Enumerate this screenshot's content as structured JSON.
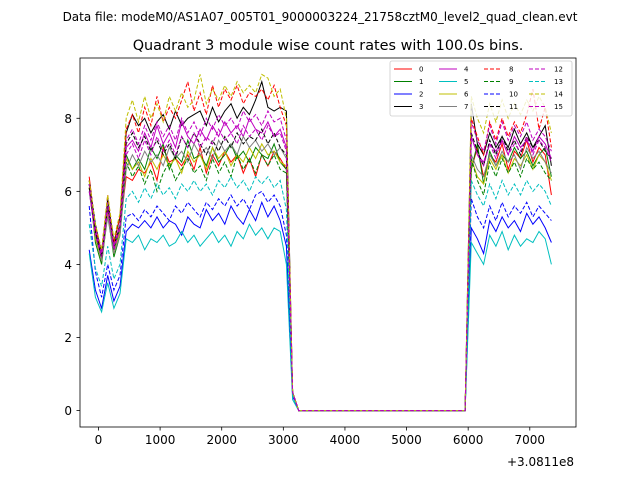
{
  "figure": {
    "suptitle": "Data file: modeM0/AS1A07_005T01_9000003224_21758cztM0_level2_quad_clean.evt"
  },
  "chart_data": {
    "type": "line",
    "title": "Quadrant 3 module wise count rates with 100.0s bins.",
    "xlabel": "",
    "ylabel": "",
    "x_offset_label": "+3.0811e8",
    "xlim": [
      -300,
      7750
    ],
    "ylim": [
      -0.45,
      9.65
    ],
    "xticks": [
      0,
      1000,
      2000,
      3000,
      4000,
      5000,
      6000,
      7000
    ],
    "yticks": [
      0,
      2,
      4,
      6,
      8
    ],
    "grid": false,
    "legend_position": "top-right",
    "x": [
      -150,
      -50,
      50,
      150,
      250,
      350,
      450,
      550,
      650,
      750,
      850,
      950,
      1050,
      1150,
      1250,
      1350,
      1450,
      1550,
      1650,
      1750,
      1850,
      1950,
      2050,
      2150,
      2250,
      2350,
      2450,
      2550,
      2650,
      2750,
      2850,
      2950,
      3050,
      3150,
      3250,
      3350,
      5950,
      6050,
      6150,
      6250,
      6350,
      6450,
      6550,
      6650,
      6750,
      6850,
      6950,
      7050,
      7150,
      7250,
      7350
    ],
    "series": [
      {
        "name": "0",
        "color": "#ff0000",
        "dash": false,
        "values": [
          6.4,
          5.0,
          4.3,
          5.6,
          4.4,
          5.0,
          6.4,
          6.3,
          6.6,
          6.5,
          6.8,
          6.3,
          7.2,
          6.8,
          6.9,
          6.7,
          7.0,
          6.6,
          7.2,
          6.5,
          7.0,
          6.7,
          7.1,
          6.8,
          7.0,
          6.5,
          6.9,
          6.4,
          7.0,
          6.7,
          7.1,
          6.9,
          6.6,
          0.5,
          0.0,
          0.0,
          0.0,
          6.6,
          7.2,
          6.4,
          7.0,
          6.8,
          7.3,
          6.6,
          7.1,
          6.9,
          7.4,
          6.8,
          7.2,
          7.0,
          5.9
        ]
      },
      {
        "name": "1",
        "color": "#008000",
        "dash": false,
        "values": [
          6.2,
          4.6,
          4.0,
          5.4,
          4.2,
          4.8,
          7.0,
          6.6,
          6.9,
          6.6,
          7.2,
          6.9,
          7.3,
          6.6,
          7.0,
          6.8,
          7.4,
          6.9,
          7.0,
          6.7,
          7.2,
          6.8,
          7.0,
          7.3,
          6.9,
          7.1,
          6.8,
          7.2,
          7.0,
          6.9,
          7.3,
          6.8,
          6.6,
          0.5,
          0.0,
          0.0,
          0.0,
          6.6,
          7.3,
          6.2,
          7.1,
          6.7,
          7.0,
          6.8,
          7.2,
          6.9,
          7.1,
          6.7,
          7.0,
          7.2,
          6.4
        ]
      },
      {
        "name": "2",
        "color": "#0000ff",
        "dash": false,
        "values": [
          4.4,
          3.3,
          2.8,
          3.7,
          3.0,
          3.4,
          4.9,
          5.1,
          5.0,
          5.2,
          5.0,
          5.3,
          5.0,
          5.2,
          5.1,
          4.8,
          5.3,
          5.1,
          5.0,
          5.5,
          5.2,
          5.4,
          5.1,
          5.6,
          5.3,
          5.1,
          5.5,
          5.2,
          5.7,
          5.3,
          5.6,
          5.2,
          4.5,
          0.4,
          0.0,
          0.0,
          0.0,
          5.0,
          4.7,
          4.3,
          5.2,
          4.9,
          5.3,
          5.0,
          5.2,
          4.9,
          5.4,
          5.1,
          5.3,
          5.0,
          4.6
        ]
      },
      {
        "name": "3",
        "color": "#000000",
        "dash": false,
        "values": [
          6.3,
          5.1,
          4.3,
          5.8,
          4.6,
          5.3,
          7.6,
          8.1,
          7.8,
          8.0,
          7.6,
          7.9,
          8.1,
          7.7,
          8.2,
          7.8,
          8.0,
          8.1,
          8.2,
          7.8,
          8.3,
          7.9,
          8.2,
          8.4,
          8.0,
          8.3,
          8.1,
          8.5,
          9.0,
          8.3,
          8.2,
          8.3,
          8.2,
          0.5,
          0.0,
          0.0,
          0.0,
          8.4,
          7.3,
          7.0,
          7.6,
          7.2,
          7.5,
          7.2,
          7.7,
          7.3,
          7.6,
          7.2,
          7.5,
          7.8,
          6.7
        ]
      },
      {
        "name": "4",
        "color": "#bf00bf",
        "dash": false,
        "values": [
          6.2,
          4.9,
          4.2,
          5.5,
          4.4,
          5.0,
          7.2,
          7.4,
          7.1,
          7.6,
          7.2,
          7.8,
          7.3,
          7.6,
          7.2,
          7.9,
          7.5,
          7.3,
          7.7,
          7.4,
          7.8,
          7.5,
          7.9,
          7.6,
          7.8,
          7.5,
          8.0,
          7.7,
          7.6,
          7.9,
          7.5,
          7.7,
          7.2,
          0.5,
          0.0,
          0.0,
          0.0,
          7.5,
          7.0,
          6.8,
          7.3,
          7.1,
          7.4,
          7.0,
          7.5,
          7.2,
          7.4,
          7.1,
          7.5,
          7.3,
          6.9
        ]
      },
      {
        "name": "5",
        "color": "#00bfbf",
        "dash": false,
        "values": [
          4.3,
          3.1,
          2.7,
          3.5,
          2.8,
          3.2,
          4.7,
          4.6,
          4.8,
          4.4,
          4.7,
          4.6,
          4.8,
          4.5,
          4.6,
          4.9,
          4.6,
          4.8,
          4.5,
          4.7,
          4.9,
          4.6,
          4.8,
          4.5,
          4.9,
          4.7,
          5.1,
          4.8,
          5.0,
          4.7,
          5.0,
          4.9,
          4.0,
          0.3,
          0.0,
          0.0,
          0.0,
          4.6,
          4.3,
          4.0,
          4.8,
          4.5,
          4.9,
          4.4,
          4.8,
          4.5,
          4.7,
          4.6,
          4.9,
          4.7,
          4.0
        ]
      },
      {
        "name": "6",
        "color": "#bfbf00",
        "dash": false,
        "values": [
          6.1,
          4.7,
          4.1,
          5.4,
          4.3,
          4.9,
          6.9,
          6.6,
          6.8,
          6.4,
          6.9,
          6.6,
          7.0,
          6.7,
          6.9,
          6.5,
          7.1,
          6.8,
          7.0,
          6.6,
          7.2,
          6.9,
          7.1,
          6.7,
          7.0,
          6.8,
          7.2,
          6.9,
          7.3,
          7.0,
          7.1,
          6.8,
          6.7,
          0.5,
          0.0,
          0.0,
          0.0,
          6.9,
          6.4,
          6.2,
          6.9,
          6.6,
          7.0,
          6.5,
          6.9,
          6.7,
          7.0,
          6.6,
          7.0,
          6.8,
          6.3
        ]
      },
      {
        "name": "7",
        "color": "#808080",
        "dash": false,
        "values": [
          6.0,
          4.8,
          4.1,
          5.3,
          4.3,
          4.8,
          6.6,
          7.0,
          6.7,
          7.1,
          6.8,
          7.0,
          6.7,
          7.2,
          6.9,
          7.1,
          6.8,
          7.3,
          7.0,
          7.2,
          6.9,
          7.4,
          7.1,
          7.3,
          7.0,
          7.5,
          7.2,
          7.4,
          7.1,
          7.3,
          7.0,
          7.2,
          6.9,
          0.5,
          0.0,
          0.0,
          0.0,
          7.0,
          6.6,
          6.4,
          7.0,
          6.7,
          7.1,
          6.8,
          7.0,
          6.6,
          7.2,
          6.9,
          7.1,
          6.8,
          6.5
        ]
      },
      {
        "name": "8",
        "color": "#ff0000",
        "dash": true,
        "values": [
          6.3,
          5.0,
          4.4,
          5.9,
          4.6,
          5.3,
          7.7,
          8.1,
          7.6,
          8.3,
          7.8,
          8.6,
          7.9,
          8.3,
          8.0,
          8.5,
          9.0,
          8.2,
          8.7,
          8.1,
          8.9,
          8.3,
          8.8,
          8.5,
          8.9,
          8.4,
          8.7,
          8.6,
          8.8,
          8.5,
          8.9,
          8.3,
          7.8,
          0.5,
          0.0,
          0.0,
          0.0,
          8.0,
          7.5,
          7.0,
          7.9,
          7.4,
          8.0,
          7.5,
          7.9,
          7.6,
          8.1,
          8.8,
          7.7,
          8.3,
          7.2
        ]
      },
      {
        "name": "9",
        "color": "#008000",
        "dash": true,
        "values": [
          6.2,
          4.8,
          4.2,
          5.6,
          4.4,
          5.0,
          6.8,
          6.4,
          6.7,
          6.2,
          6.6,
          6.0,
          6.5,
          6.8,
          6.3,
          6.6,
          6.9,
          6.5,
          6.7,
          6.3,
          6.9,
          6.5,
          6.8,
          6.4,
          7.0,
          6.6,
          6.9,
          6.5,
          7.0,
          6.7,
          7.0,
          6.6,
          6.5,
          0.5,
          0.0,
          0.0,
          0.0,
          6.9,
          6.3,
          5.9,
          6.8,
          6.4,
          6.9,
          6.5,
          6.8,
          6.4,
          6.9,
          6.6,
          6.8,
          6.5,
          6.3
        ]
      },
      {
        "name": "10",
        "color": "#0000ff",
        "dash": true,
        "values": [
          5.6,
          3.8,
          3.1,
          4.0,
          3.3,
          3.7,
          5.3,
          5.4,
          5.2,
          5.5,
          5.3,
          5.6,
          5.4,
          5.2,
          5.6,
          5.4,
          5.7,
          5.5,
          5.3,
          5.7,
          5.5,
          5.8,
          5.6,
          5.9,
          5.6,
          5.8,
          5.5,
          5.9,
          6.0,
          5.7,
          5.9,
          5.6,
          4.8,
          0.4,
          0.0,
          0.0,
          0.0,
          5.8,
          5.3,
          5.0,
          5.6,
          5.2,
          5.7,
          5.3,
          5.6,
          5.4,
          5.7,
          5.3,
          5.6,
          5.4,
          5.2
        ]
      },
      {
        "name": "11",
        "color": "#000000",
        "dash": true,
        "values": [
          6.1,
          4.9,
          4.2,
          5.6,
          4.5,
          5.1,
          7.3,
          7.6,
          7.2,
          7.5,
          7.1,
          7.4,
          7.0,
          7.3,
          6.9,
          7.5,
          7.2,
          7.6,
          7.3,
          7.0,
          7.4,
          7.1,
          7.5,
          7.2,
          7.6,
          7.3,
          7.5,
          7.4,
          7.7,
          7.3,
          7.6,
          7.2,
          7.0,
          0.5,
          0.0,
          0.0,
          0.0,
          7.6,
          7.1,
          6.7,
          7.4,
          7.0,
          7.5,
          7.1,
          7.4,
          7.0,
          7.5,
          7.2,
          7.4,
          7.1,
          6.9
        ]
      },
      {
        "name": "12",
        "color": "#bf00bf",
        "dash": true,
        "values": [
          6.2,
          5.0,
          4.3,
          5.7,
          4.5,
          5.1,
          7.4,
          7.7,
          7.3,
          7.8,
          7.4,
          7.9,
          7.5,
          7.8,
          7.4,
          8.0,
          7.6,
          7.9,
          7.5,
          8.0,
          7.7,
          8.1,
          7.8,
          8.0,
          7.7,
          8.2,
          7.9,
          8.1,
          7.8,
          8.2,
          7.9,
          8.0,
          7.4,
          0.5,
          0.0,
          0.0,
          0.0,
          7.9,
          7.4,
          7.1,
          7.8,
          7.3,
          7.9,
          7.4,
          7.8,
          7.5,
          7.9,
          7.4,
          7.7,
          7.5,
          7.1
        ]
      },
      {
        "name": "13",
        "color": "#00bfbf",
        "dash": true,
        "values": [
          5.1,
          3.9,
          3.4,
          4.5,
          3.6,
          4.0,
          5.8,
          6.0,
          5.7,
          6.1,
          5.8,
          6.2,
          5.9,
          6.1,
          5.8,
          6.2,
          6.0,
          6.3,
          6.0,
          6.2,
          5.9,
          6.3,
          6.1,
          6.4,
          6.1,
          6.3,
          6.0,
          6.4,
          6.2,
          6.4,
          6.1,
          6.3,
          5.5,
          0.4,
          0.0,
          0.0,
          0.0,
          6.3,
          5.9,
          5.6,
          6.2,
          5.8,
          6.3,
          5.9,
          6.2,
          5.9,
          6.3,
          6.0,
          6.2,
          6.0,
          5.6
        ]
      },
      {
        "name": "14",
        "color": "#bfbf00",
        "dash": true,
        "values": [
          6.3,
          5.1,
          4.4,
          5.9,
          4.7,
          5.4,
          8.0,
          8.5,
          7.9,
          8.6,
          8.0,
          8.4,
          7.9,
          8.6,
          8.2,
          8.7,
          8.3,
          8.5,
          9.2,
          8.4,
          8.8,
          8.5,
          8.9,
          8.6,
          9.0,
          8.7,
          8.9,
          8.7,
          9.2,
          9.1,
          8.6,
          8.8,
          8.0,
          0.5,
          0.0,
          0.0,
          0.0,
          8.6,
          8.0,
          7.6,
          8.4,
          7.9,
          8.5,
          8.0,
          8.4,
          8.1,
          8.5,
          8.2,
          8.6,
          8.3,
          7.6
        ]
      },
      {
        "name": "15",
        "color": "#bf00bf",
        "dash": true,
        "values": [
          6.0,
          4.8,
          4.2,
          5.5,
          4.4,
          5.0,
          7.0,
          7.3,
          6.9,
          7.4,
          7.0,
          7.5,
          7.1,
          7.4,
          7.0,
          7.5,
          7.2,
          7.6,
          7.2,
          7.5,
          7.3,
          7.7,
          7.4,
          7.6,
          7.3,
          7.8,
          7.5,
          7.7,
          7.4,
          7.8,
          7.5,
          7.6,
          7.1,
          0.5,
          0.0,
          0.0,
          0.0,
          7.5,
          7.0,
          6.7,
          7.3,
          6.9,
          7.4,
          7.0,
          7.3,
          7.1,
          7.5,
          7.0,
          7.4,
          7.2,
          6.8
        ]
      }
    ]
  }
}
